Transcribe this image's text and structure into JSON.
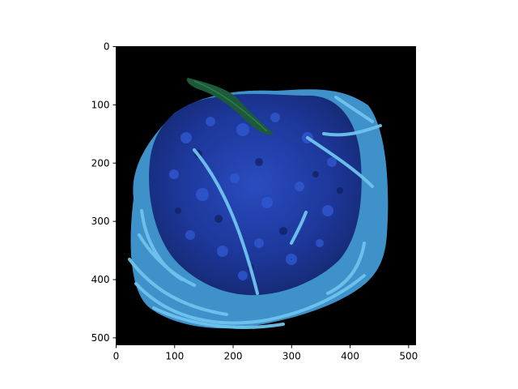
{
  "chart_data": {
    "type": "image",
    "title": "",
    "xlabel": "",
    "ylabel": "",
    "xlim": [
      0,
      512
    ],
    "ylim": [
      512,
      0
    ],
    "xticks": [
      0,
      100,
      200,
      300,
      400,
      500
    ],
    "yticks": [
      0,
      100,
      200,
      300,
      400,
      500
    ],
    "grid": false,
    "image_description": "blue-tinted spaghetti with meat sauce and a green herb sprig on a black background",
    "colors": {
      "background": "#000000",
      "sauce": "#1f3d9e",
      "noodles": "#4ea7d8",
      "herb": "#1c5a3a",
      "axes": "#000000"
    }
  }
}
